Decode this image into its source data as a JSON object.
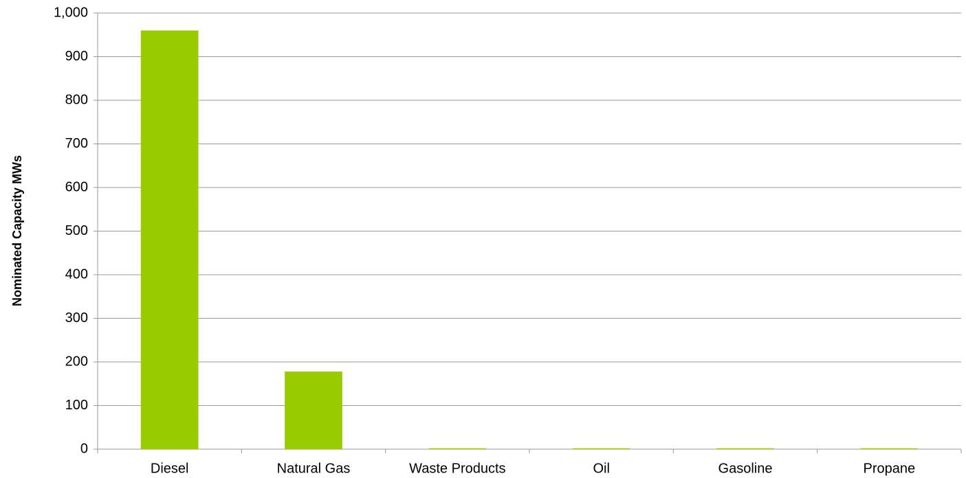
{
  "chart_data": {
    "type": "bar",
    "y_label": "Nominated Capacity MWs",
    "categories": [
      "Diesel",
      "Natural Gas",
      "Waste Products",
      "Oil",
      "Gasoline",
      "Propane"
    ],
    "values": [
      960,
      178,
      2,
      2,
      2,
      2
    ],
    "color": "#99cc00",
    "ylim": [
      0,
      1000
    ],
    "yticks": [
      0,
      100,
      200,
      300,
      400,
      500,
      600,
      700,
      800,
      900,
      {
        "value": 1000,
        "label": "1,000"
      }
    ],
    "grid": true
  }
}
